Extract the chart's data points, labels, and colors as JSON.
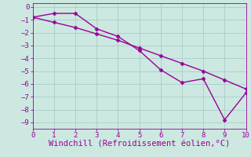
{
  "line1_x": [
    0,
    1,
    2,
    3,
    4,
    5,
    6,
    7,
    8,
    9,
    10
  ],
  "line1_y": [
    -0.8,
    -0.5,
    -0.5,
    -1.7,
    -2.3,
    -3.4,
    -4.9,
    -5.9,
    -5.6,
    -8.8,
    -6.7
  ],
  "line2_x": [
    0,
    1,
    2,
    3,
    4,
    5,
    6,
    7,
    8,
    9,
    10
  ],
  "line2_y": [
    -0.8,
    -1.2,
    -1.6,
    -2.1,
    -2.6,
    -3.2,
    -3.8,
    -4.4,
    -5.0,
    -5.7,
    -6.4
  ],
  "line_color": "#990099",
  "marker": "D",
  "markersize": 2.5,
  "linewidth": 1.0,
  "xlabel": "Windchill (Refroidissement éolien,°C)",
  "xlim": [
    0,
    10
  ],
  "ylim": [
    -9.5,
    0.3
  ],
  "xticks": [
    0,
    1,
    2,
    3,
    4,
    5,
    6,
    7,
    8,
    9,
    10
  ],
  "yticks": [
    0,
    -1,
    -2,
    -3,
    -4,
    -5,
    -6,
    -7,
    -8,
    -9
  ],
  "bg_color": "#cce8e0",
  "grid_color": "#aacccc",
  "xlabel_fontsize": 7.5,
  "tick_fontsize": 6.5
}
